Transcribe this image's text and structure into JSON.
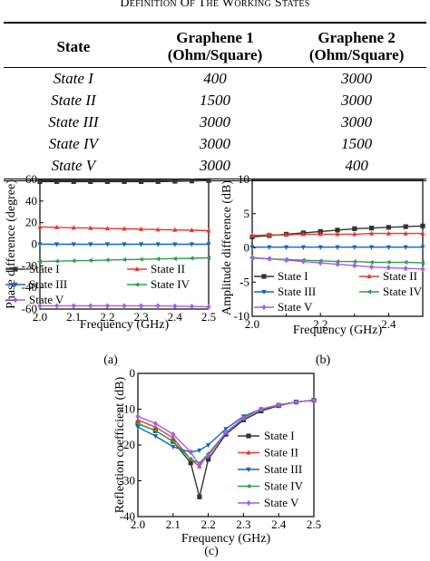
{
  "caption": "Definition of the Working States",
  "table": {
    "headers": [
      "State",
      "Graphene 1\n(Ohm/Square)",
      "Graphene 2\n(Ohm/Square)"
    ],
    "rows": [
      {
        "state": "State I",
        "g1": "400",
        "g2": "3000"
      },
      {
        "state": "State II",
        "g1": "1500",
        "g2": "3000"
      },
      {
        "state": "State III",
        "g1": "3000",
        "g2": "3000"
      },
      {
        "state": "State IV",
        "g1": "3000",
        "g2": "1500"
      },
      {
        "state": "State V",
        "g1": "3000",
        "g2": "400"
      }
    ]
  },
  "chart_data": [
    {
      "type": "line",
      "panel_label": "(a)",
      "xlabel": "Frequency (GHz)",
      "ylabel": "Phase difference (degree)",
      "xlim": [
        2.0,
        2.5
      ],
      "ylim": [
        -60,
        60
      ],
      "xticks": [
        "2.0",
        "2.1",
        "2.2",
        "2.3",
        "2.4",
        "2.5"
      ],
      "yticks": [
        "60",
        "40",
        "20",
        "0",
        "-20",
        "-40",
        "-60"
      ],
      "x": [
        2.0,
        2.05,
        2.1,
        2.15,
        2.2,
        2.25,
        2.3,
        2.35,
        2.4,
        2.45,
        2.5
      ],
      "series": [
        {
          "name": "State I",
          "color": "#333333",
          "marker": "square",
          "values": [
            58,
            58,
            58,
            58,
            58,
            58,
            58,
            58,
            58.3,
            58.6,
            59
          ]
        },
        {
          "name": "State II",
          "color": "#e8382f",
          "marker": "triangle",
          "values": [
            16,
            15.7,
            15.3,
            15,
            14.6,
            14.3,
            14,
            13.6,
            13.3,
            13,
            12.6
          ]
        },
        {
          "name": "State III",
          "color": "#1565c0",
          "marker": "triangle-down",
          "values": [
            0,
            0,
            0,
            0,
            0,
            0,
            0,
            0,
            0,
            0,
            0
          ]
        },
        {
          "name": "State IV",
          "color": "#2e9e4f",
          "marker": "triangle-left",
          "values": [
            -16,
            -15.7,
            -15.3,
            -15,
            -14.6,
            -14.3,
            -14,
            -13.6,
            -13.3,
            -13,
            -12.6
          ]
        },
        {
          "name": "State V",
          "color": "#a45ee5",
          "marker": "diamond",
          "values": [
            -57,
            -57,
            -57,
            -57,
            -57,
            -57,
            -57,
            -57,
            -57.3,
            -57.6,
            -58
          ]
        }
      ],
      "legend": "bottom-left"
    },
    {
      "type": "line",
      "panel_label": "(b)",
      "xlabel": "Frequency (GHz)",
      "ylabel": "Amplitude difference (dB)",
      "xlim": [
        2.0,
        2.5
      ],
      "ylim": [
        -10,
        10
      ],
      "xticks": [
        "2.0",
        "2.2",
        "2.4"
      ],
      "xticks_minor": [
        "2.1",
        "2.3",
        "2.5"
      ],
      "yticks": [
        "10",
        "5",
        "0",
        "-5",
        "-10"
      ],
      "x": [
        2.0,
        2.05,
        2.1,
        2.15,
        2.2,
        2.25,
        2.3,
        2.35,
        2.4,
        2.45,
        2.5
      ],
      "series": [
        {
          "name": "State I",
          "color": "#333333",
          "marker": "square",
          "values": [
            1.6,
            1.8,
            2.0,
            2.2,
            2.4,
            2.6,
            2.8,
            2.9,
            3.0,
            3.1,
            3.2
          ]
        },
        {
          "name": "State II",
          "color": "#e8382f",
          "marker": "triangle",
          "values": [
            1.8,
            1.9,
            1.9,
            2.0,
            2.0,
            2.0,
            2.0,
            2.1,
            2.1,
            2.1,
            2.1
          ]
        },
        {
          "name": "State III",
          "color": "#1565c0",
          "marker": "triangle-down",
          "values": [
            0.1,
            0.1,
            0.1,
            0.1,
            0.1,
            0.1,
            0.1,
            0.1,
            0.1,
            0.1,
            0.1
          ]
        },
        {
          "name": "State IV",
          "color": "#2e9e4f",
          "marker": "triangle-left",
          "values": [
            -1.5,
            -1.6,
            -1.7,
            -1.8,
            -1.9,
            -2.0,
            -2.0,
            -2.1,
            -2.1,
            -2.1,
            -2.2
          ]
        },
        {
          "name": "State V",
          "color": "#a45ee5",
          "marker": "diamond",
          "values": [
            -1.4,
            -1.6,
            -1.8,
            -2.0,
            -2.2,
            -2.4,
            -2.6,
            -2.8,
            -2.9,
            -3.0,
            -3.1
          ]
        }
      ],
      "legend": "bottom-left"
    },
    {
      "type": "line",
      "panel_label": "(c)",
      "xlabel": "Frequency (GHz)",
      "ylabel": "Reflection coefficient (dB)",
      "xlim": [
        2.0,
        2.5
      ],
      "ylim": [
        -40,
        0
      ],
      "xticks": [
        "2.0",
        "2.1",
        "2.2",
        "2.3",
        "2.4",
        "2.5"
      ],
      "yticks": [
        "0",
        "-10",
        "-20",
        "-30",
        "-40"
      ],
      "x": [
        2.0,
        2.05,
        2.1,
        2.15,
        2.175,
        2.2,
        2.25,
        2.3,
        2.35,
        2.4,
        2.45,
        2.5
      ],
      "series": [
        {
          "name": "State I",
          "color": "#333333",
          "marker": "square",
          "values": [
            -14,
            -16,
            -19,
            -25,
            -34.5,
            -24,
            -17,
            -13,
            -10.5,
            -9,
            -8,
            -7.5
          ]
        },
        {
          "name": "State II",
          "color": "#e8382f",
          "marker": "triangle",
          "values": [
            -13,
            -15,
            -18,
            -24,
            -26,
            -22.5,
            -16.5,
            -12.5,
            -10,
            -8.8,
            -8,
            -7.5
          ]
        },
        {
          "name": "State III",
          "color": "#1565c0",
          "marker": "triangle-down",
          "values": [
            -15,
            -17.5,
            -20.5,
            -22,
            -21.5,
            -20,
            -15.5,
            -12,
            -10,
            -8.8,
            -8,
            -7.5
          ]
        },
        {
          "name": "State IV",
          "color": "#2e9e4f",
          "marker": "triangle-left",
          "values": [
            -14,
            -16,
            -19,
            -24,
            -25,
            -22.5,
            -16.5,
            -12.5,
            -10,
            -8.8,
            -8,
            -7.5
          ]
        },
        {
          "name": "State V",
          "color": "#a45ee5",
          "marker": "diamond",
          "values": [
            -12,
            -14,
            -17,
            -22,
            -25.5,
            -23,
            -16.5,
            -12.5,
            -10,
            -8.8,
            -8,
            -7.5
          ]
        }
      ],
      "legend": "right"
    }
  ]
}
